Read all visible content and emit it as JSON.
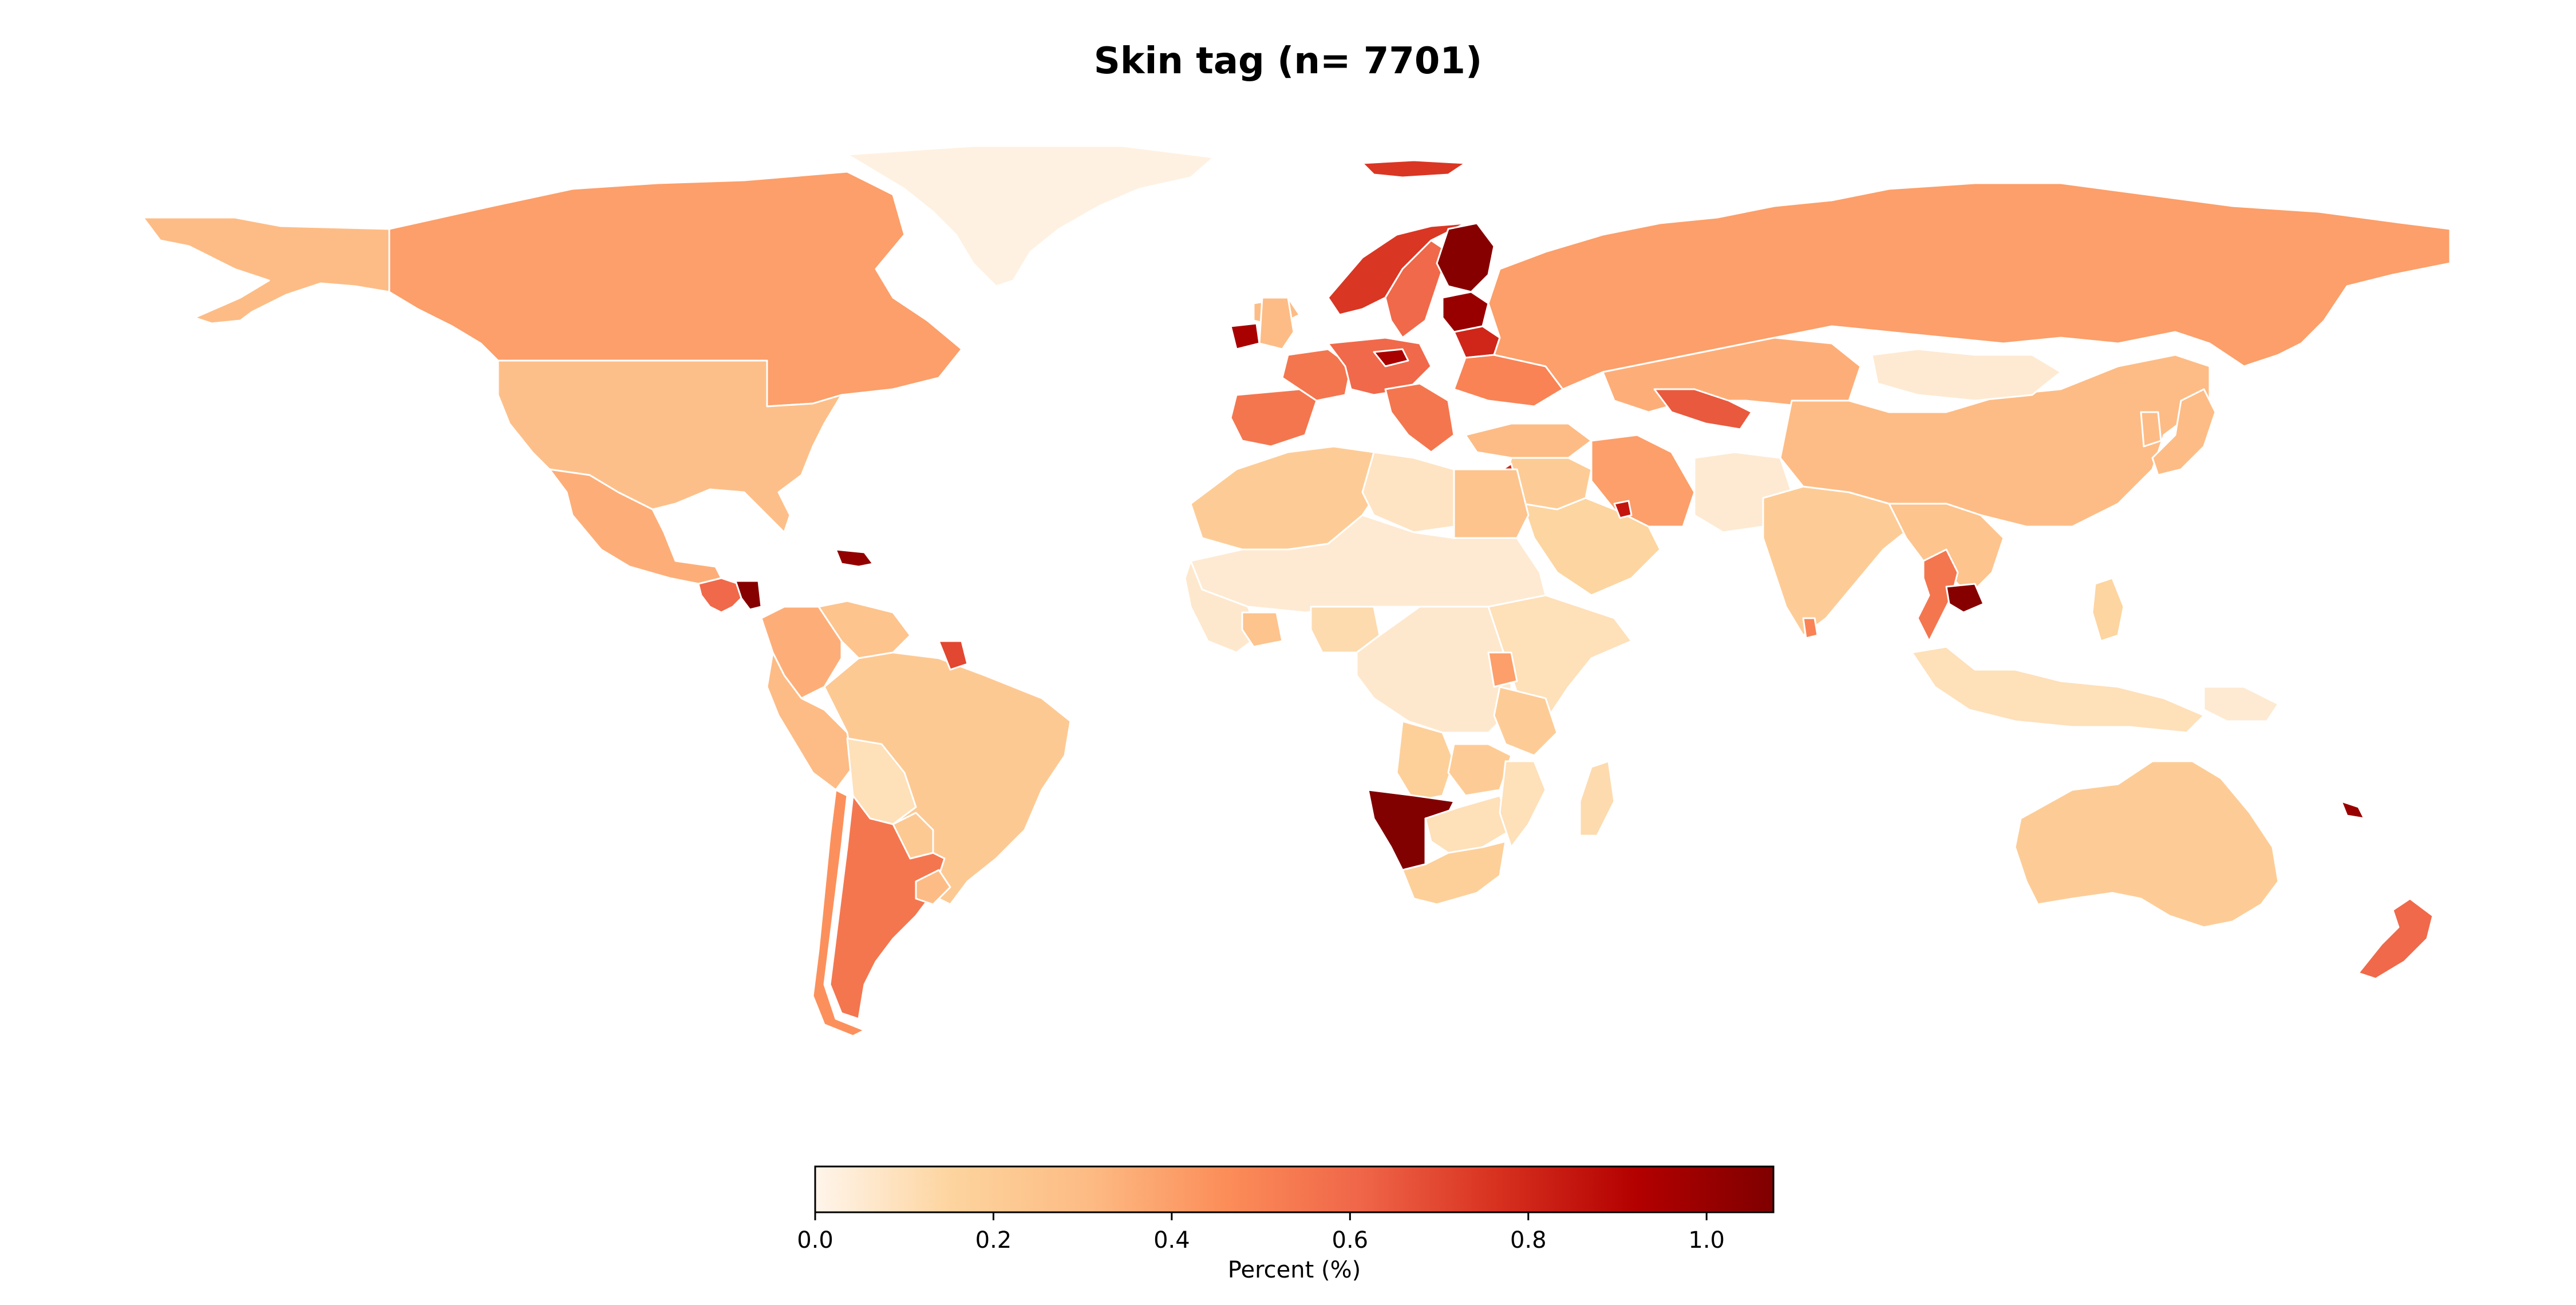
{
  "title": "Skin tag (n= 7701)",
  "colorbar": {
    "label": "Percent (%)",
    "min": 0.0,
    "max": 1.075,
    "ticks": [
      {
        "value": 0.0,
        "label": "0.0"
      },
      {
        "value": 0.2,
        "label": "0.2"
      },
      {
        "value": 0.4,
        "label": "0.4"
      },
      {
        "value": 0.6,
        "label": "0.6"
      },
      {
        "value": 0.8,
        "label": "0.8"
      },
      {
        "value": 1.0,
        "label": "1.0"
      }
    ],
    "colormap": [
      "#fff5eb",
      "#fdd49e",
      "#fdbb84",
      "#fc8d59",
      "#ef6548",
      "#d7301f",
      "#b30000",
      "#7f0000"
    ]
  },
  "regions": [
    {
      "name": "Alaska",
      "value": 0.3
    },
    {
      "name": "Canada",
      "value": 0.4
    },
    {
      "name": "Greenland",
      "value": 0.02
    },
    {
      "name": "United States",
      "value": 0.28
    },
    {
      "name": "Mexico",
      "value": 0.35
    },
    {
      "name": "Central America",
      "value": 0.6
    },
    {
      "name": "Nicaragua",
      "value": 1.05
    },
    {
      "name": "Caribbean",
      "value": 1.02
    },
    {
      "name": "Colombia",
      "value": 0.35
    },
    {
      "name": "Venezuela",
      "value": 0.25
    },
    {
      "name": "Ecuador Peru",
      "value": 0.3
    },
    {
      "name": "Brazil",
      "value": 0.22
    },
    {
      "name": "Bolivia",
      "value": 0.1
    },
    {
      "name": "Paraguay",
      "value": 0.22
    },
    {
      "name": "Argentina",
      "value": 0.55
    },
    {
      "name": "Chile",
      "value": 0.45
    },
    {
      "name": "Uruguay",
      "value": 0.3
    },
    {
      "name": "Suriname",
      "value": 0.7
    },
    {
      "name": "Iceland",
      "value": 0.3
    },
    {
      "name": "Ireland",
      "value": 0.95
    },
    {
      "name": "United Kingdom",
      "value": 0.3
    },
    {
      "name": "Norway",
      "value": 0.75
    },
    {
      "name": "Sweden",
      "value": 0.6
    },
    {
      "name": "Finland",
      "value": 1.05
    },
    {
      "name": "Svalbard",
      "value": 0.75
    },
    {
      "name": "Baltics",
      "value": 1.0
    },
    {
      "name": "Belarus",
      "value": 0.8
    },
    {
      "name": "Spain",
      "value": 0.55
    },
    {
      "name": "France",
      "value": 0.55
    },
    {
      "name": "Central Europe",
      "value": 0.6
    },
    {
      "name": "Czechia",
      "value": 0.95
    },
    {
      "name": "Balkans",
      "value": 0.55
    },
    {
      "name": "Ukraine",
      "value": 0.5
    },
    {
      "name": "Russia",
      "value": 0.4
    },
    {
      "name": "Kazakhstan",
      "value": 0.35
    },
    {
      "name": "Uzbekistan",
      "value": 0.65
    },
    {
      "name": "Turkey",
      "value": 0.3
    },
    {
      "name": "Middle East",
      "value": 0.2
    },
    {
      "name": "Iran",
      "value": 0.4
    },
    {
      "name": "Saudi Arabia",
      "value": 0.15
    },
    {
      "name": "Israel Lebanon",
      "value": 0.8
    },
    {
      "name": "UAE Qatar",
      "value": 0.85
    },
    {
      "name": "Afghanistan Pakistan",
      "value": 0.05
    },
    {
      "name": "India",
      "value": 0.2
    },
    {
      "name": "Sri Lanka",
      "value": 0.5
    },
    {
      "name": "China",
      "value": 0.3
    },
    {
      "name": "Mongolia",
      "value": 0.05
    },
    {
      "name": "Japan",
      "value": 0.3
    },
    {
      "name": "Korea",
      "value": 0.3
    },
    {
      "name": "Myanmar Laos Vietnam",
      "value": 0.25
    },
    {
      "name": "Thailand",
      "value": 0.55
    },
    {
      "name": "Cambodia",
      "value": 1.05
    },
    {
      "name": "Malaysia Indonesia",
      "value": 0.1
    },
    {
      "name": "Philippines",
      "value": 0.15
    },
    {
      "name": "Papua New Guinea",
      "value": 0.05
    },
    {
      "name": "Australia",
      "value": 0.2
    },
    {
      "name": "New Zealand",
      "value": 0.6
    },
    {
      "name": "New Caledonia",
      "value": 1.0
    },
    {
      "name": "North Africa west",
      "value": 0.2
    },
    {
      "name": "Libya",
      "value": 0.08
    },
    {
      "name": "Egypt",
      "value": 0.25
    },
    {
      "name": "Sahel",
      "value": 0.05
    },
    {
      "name": "West Africa",
      "value": 0.06
    },
    {
      "name": "Nigeria",
      "value": 0.12
    },
    {
      "name": "Ghana",
      "value": 0.25
    },
    {
      "name": "Central Africa",
      "value": 0.06
    },
    {
      "name": "East Africa",
      "value": 0.1
    },
    {
      "name": "Uganda",
      "value": 0.4
    },
    {
      "name": "Tanzania",
      "value": 0.2
    },
    {
      "name": "Angola",
      "value": 0.18
    },
    {
      "name": "Zambia",
      "value": 0.2
    },
    {
      "name": "Namibia",
      "value": 1.07
    },
    {
      "name": "Botswana Zimbabwe",
      "value": 0.1
    },
    {
      "name": "Mozambique",
      "value": 0.1
    },
    {
      "name": "South Africa",
      "value": 0.18
    },
    {
      "name": "Madagascar",
      "value": 0.12
    }
  ]
}
